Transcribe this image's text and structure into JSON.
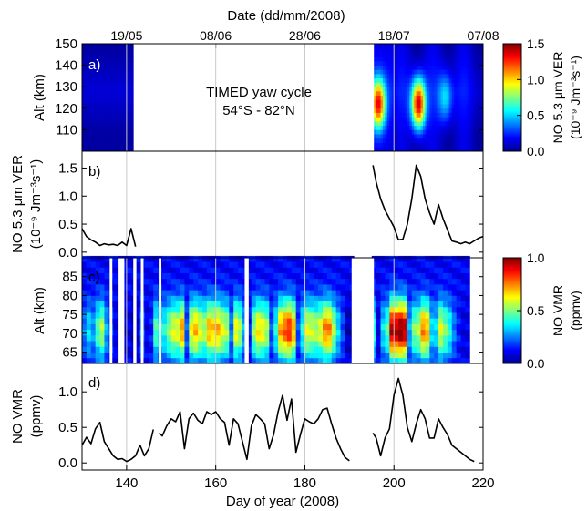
{
  "top_axis_label": "Date (dd/mm/2008)",
  "top_ticks": [
    {
      "doy": 140,
      "label": "19/05"
    },
    {
      "doy": 160,
      "label": "08/06"
    },
    {
      "doy": 180,
      "label": "28/06"
    },
    {
      "doy": 200,
      "label": "18/07"
    },
    {
      "doy": 220,
      "label": "07/08"
    }
  ],
  "x_axis_label": "Day of year (2008)",
  "annotation": {
    "line1": "TIMED yaw cycle",
    "line2": "54°S - 82°N"
  },
  "colors": {
    "line": "#000000",
    "gap": "#ffffff",
    "gridline": "#c8c8c8"
  },
  "chart_data": [
    {
      "panel": "a)",
      "type": "heatmap",
      "ylabel": "Alt (km)",
      "x_range": [
        130,
        220
      ],
      "ylim": [
        100,
        150
      ],
      "yticks": [
        110,
        120,
        130,
        140,
        150
      ],
      "colorbar": {
        "label_line1": "NO 5.3 μm VER",
        "label_line2": "(10⁻⁹ Jm⁻³s⁻¹)",
        "range": [
          0,
          1.5
        ],
        "ticks": [
          "0.0",
          "0.5",
          "1.0",
          "1.5"
        ]
      },
      "data_gaps": [
        [
          141.7,
          195.3
        ]
      ],
      "peaks": [
        {
          "day": 196.5,
          "alt": 122,
          "value": 1.3
        },
        {
          "day": 205.5,
          "alt": 122,
          "value": 1.45
        },
        {
          "day": 211.5,
          "alt": 125,
          "value": 0.55
        }
      ]
    },
    {
      "panel": "b)",
      "type": "line",
      "ylabel_line1": "NO 5.3 μm VER",
      "ylabel_line2": "(10⁻⁹ Jm⁻³s⁻¹)",
      "xlim": [
        130,
        220
      ],
      "ylim": [
        -0.1,
        1.8
      ],
      "yticks": [
        "0.0",
        "0.5",
        "1.0",
        "1.5"
      ],
      "segments": [
        [
          [
            130,
            0.42
          ],
          [
            131,
            0.28
          ],
          [
            132,
            0.22
          ],
          [
            133,
            0.18
          ],
          [
            134,
            0.12
          ],
          [
            135,
            0.15
          ],
          [
            136,
            0.13
          ],
          [
            137,
            0.14
          ],
          [
            138,
            0.12
          ],
          [
            139,
            0.18
          ],
          [
            140,
            0.12
          ],
          [
            141,
            0.42
          ],
          [
            142,
            0.1
          ]
        ],
        [
          [
            195.3,
            1.55
          ],
          [
            196,
            1.25
          ],
          [
            197,
            0.95
          ],
          [
            198,
            0.75
          ],
          [
            199,
            0.6
          ],
          [
            200,
            0.45
          ],
          [
            201,
            0.22
          ],
          [
            202,
            0.23
          ],
          [
            203,
            0.5
          ],
          [
            204,
            0.95
          ],
          [
            205,
            1.55
          ],
          [
            206,
            1.35
          ],
          [
            207,
            0.95
          ],
          [
            208,
            0.7
          ],
          [
            209,
            0.5
          ],
          [
            210,
            0.85
          ],
          [
            211,
            0.6
          ],
          [
            212,
            0.4
          ],
          [
            213,
            0.2
          ],
          [
            214,
            0.18
          ],
          [
            215,
            0.15
          ],
          [
            216,
            0.18
          ],
          [
            217,
            0.15
          ],
          [
            218,
            0.2
          ],
          [
            219,
            0.25
          ],
          [
            220,
            0.28
          ]
        ]
      ]
    },
    {
      "panel": "c)",
      "type": "heatmap",
      "ylabel": "Alt (km)",
      "x_range": [
        130,
        220
      ],
      "ylim": [
        62,
        90
      ],
      "yticks": [
        65,
        70,
        75,
        80,
        85
      ],
      "colorbar": {
        "label_line1": "NO VMR",
        "label_line2": "(ppmv)",
        "range": [
          0,
          1
        ],
        "ticks": [
          "0.0",
          "0.5",
          "1.0"
        ]
      },
      "data_gaps": [
        [
          136.2,
          136.8
        ],
        [
          138.2,
          139.5
        ],
        [
          141.5,
          142.2
        ],
        [
          143.2,
          143.8
        ],
        [
          147.2,
          147.8
        ],
        [
          166.5,
          167.4
        ],
        [
          190.5,
          191.2
        ],
        [
          193.5,
          195.5
        ]
      ],
      "daily_peak_vmr": [
        [
          130,
          0.25
        ],
        [
          131,
          0.35
        ],
        [
          132,
          0.28
        ],
        [
          133,
          0.45
        ],
        [
          134,
          0.55
        ],
        [
          135,
          0.3
        ],
        [
          136,
          0.2
        ],
        [
          137,
          0.1
        ],
        [
          138,
          0.05
        ],
        [
          139,
          0.05
        ],
        [
          140,
          0.1
        ],
        [
          141,
          0.05
        ],
        [
          142,
          0.08
        ],
        [
          143,
          0.25
        ],
        [
          144,
          0.1
        ],
        [
          145,
          0.15
        ],
        [
          146,
          0.45
        ],
        [
          147,
          0.4
        ],
        [
          148,
          0.4
        ],
        [
          149,
          0.5
        ],
        [
          150,
          0.6
        ],
        [
          151,
          0.6
        ],
        [
          152,
          0.72
        ],
        [
          153,
          0.22
        ],
        [
          154,
          0.62
        ],
        [
          155,
          0.7
        ],
        [
          156,
          0.6
        ],
        [
          157,
          0.55
        ],
        [
          158,
          0.7
        ],
        [
          159,
          0.68
        ],
        [
          160,
          0.7
        ],
        [
          161,
          0.6
        ],
        [
          162,
          0.55
        ],
        [
          163,
          0.25
        ],
        [
          164,
          0.62
        ],
        [
          165,
          0.55
        ],
        [
          166,
          0.3
        ],
        [
          167,
          0.15
        ],
        [
          168,
          0.52
        ],
        [
          169,
          0.65
        ],
        [
          170,
          0.62
        ],
        [
          171,
          0.55
        ],
        [
          172,
          0.2
        ],
        [
          173,
          0.4
        ],
        [
          174,
          0.72
        ],
        [
          175,
          0.8
        ],
        [
          176,
          0.85
        ],
        [
          177,
          0.7
        ],
        [
          178,
          0.2
        ],
        [
          179,
          0.4
        ],
        [
          180,
          0.6
        ],
        [
          181,
          0.58
        ],
        [
          182,
          0.55
        ],
        [
          183,
          0.6
        ],
        [
          184,
          0.75
        ],
        [
          185,
          0.75
        ],
        [
          186,
          0.55
        ],
        [
          187,
          0.35
        ],
        [
          188,
          0.2
        ],
        [
          189,
          0.05
        ],
        [
          190,
          0.05
        ],
        [
          195,
          0.4
        ],
        [
          196,
          0.1
        ],
        [
          197,
          0.35
        ],
        [
          198,
          0.45
        ],
        [
          199,
          0.95
        ],
        [
          200,
          0.95
        ],
        [
          201,
          1.0
        ],
        [
          202,
          0.95
        ],
        [
          203,
          0.3
        ],
        [
          204,
          0.5
        ],
        [
          205,
          0.55
        ],
        [
          206,
          0.75
        ],
        [
          207,
          0.7
        ],
        [
          208,
          0.35
        ],
        [
          209,
          0.35
        ],
        [
          210,
          0.6
        ],
        [
          211,
          0.5
        ],
        [
          212,
          0.4
        ],
        [
          213,
          0.25
        ],
        [
          214,
          0.15
        ],
        [
          215,
          0.1
        ],
        [
          216,
          0.1
        ]
      ]
    },
    {
      "panel": "d)",
      "type": "line",
      "ylabel_line1": "NO VMR",
      "ylabel_line2": "(ppmv)",
      "xlim": [
        130,
        220
      ],
      "ylim": [
        -0.1,
        1.4
      ],
      "yticks": [
        "0.0",
        "0.5",
        "1.0"
      ],
      "segments": [
        [
          [
            130,
            0.25
          ],
          [
            131,
            0.36
          ],
          [
            132,
            0.27
          ],
          [
            133,
            0.48
          ],
          [
            134,
            0.57
          ],
          [
            135,
            0.3
          ],
          [
            136,
            0.2
          ],
          [
            137,
            0.1
          ],
          [
            138,
            0.05
          ],
          [
            139,
            0.06
          ],
          [
            140,
            0.02
          ],
          [
            141,
            0.05
          ],
          [
            142,
            0.1
          ],
          [
            143,
            0.25
          ],
          [
            144,
            0.1
          ],
          [
            145,
            0.2
          ],
          [
            146,
            0.47
          ]
        ],
        [
          [
            147.3,
            0.42
          ],
          [
            148,
            0.38
          ],
          [
            149,
            0.52
          ],
          [
            150,
            0.62
          ],
          [
            151,
            0.58
          ],
          [
            152,
            0.72
          ],
          [
            153,
            0.2
          ],
          [
            154,
            0.62
          ],
          [
            155,
            0.7
          ],
          [
            156,
            0.6
          ],
          [
            157,
            0.55
          ],
          [
            158,
            0.72
          ],
          [
            159,
            0.68
          ],
          [
            160,
            0.72
          ],
          [
            161,
            0.62
          ],
          [
            162,
            0.57
          ],
          [
            163,
            0.25
          ],
          [
            164,
            0.62
          ],
          [
            165,
            0.55
          ],
          [
            166,
            0.3
          ],
          [
            167,
            0.05
          ],
          [
            168,
            0.52
          ],
          [
            169,
            0.68
          ],
          [
            170,
            0.62
          ],
          [
            171,
            0.55
          ],
          [
            172,
            0.2
          ],
          [
            173,
            0.4
          ],
          [
            174,
            0.72
          ],
          [
            175,
            0.95
          ],
          [
            176,
            0.6
          ],
          [
            177,
            0.9
          ],
          [
            178,
            0.15
          ],
          [
            179,
            0.4
          ],
          [
            180,
            0.62
          ],
          [
            181,
            0.58
          ],
          [
            182,
            0.55
          ],
          [
            183,
            0.62
          ],
          [
            184,
            0.75
          ],
          [
            185,
            0.77
          ],
          [
            186,
            0.55
          ],
          [
            187,
            0.35
          ],
          [
            188,
            0.2
          ],
          [
            189,
            0.08
          ],
          [
            190,
            0.03
          ]
        ],
        [
          [
            195.3,
            0.42
          ],
          [
            196,
            0.35
          ],
          [
            197,
            0.1
          ],
          [
            198,
            0.35
          ],
          [
            199,
            0.48
          ],
          [
            200,
            0.95
          ],
          [
            201,
            1.19
          ],
          [
            202,
            0.95
          ],
          [
            203,
            0.5
          ],
          [
            204,
            0.3
          ],
          [
            205,
            0.55
          ],
          [
            206,
            0.75
          ],
          [
            207,
            0.62
          ],
          [
            208,
            0.35
          ],
          [
            209,
            0.35
          ],
          [
            210,
            0.62
          ],
          [
            211,
            0.5
          ],
          [
            212,
            0.4
          ],
          [
            213,
            0.25
          ],
          [
            214,
            0.2
          ],
          [
            215,
            0.15
          ],
          [
            216,
            0.1
          ],
          [
            217,
            0.05
          ],
          [
            218,
            0.02
          ]
        ]
      ]
    }
  ]
}
